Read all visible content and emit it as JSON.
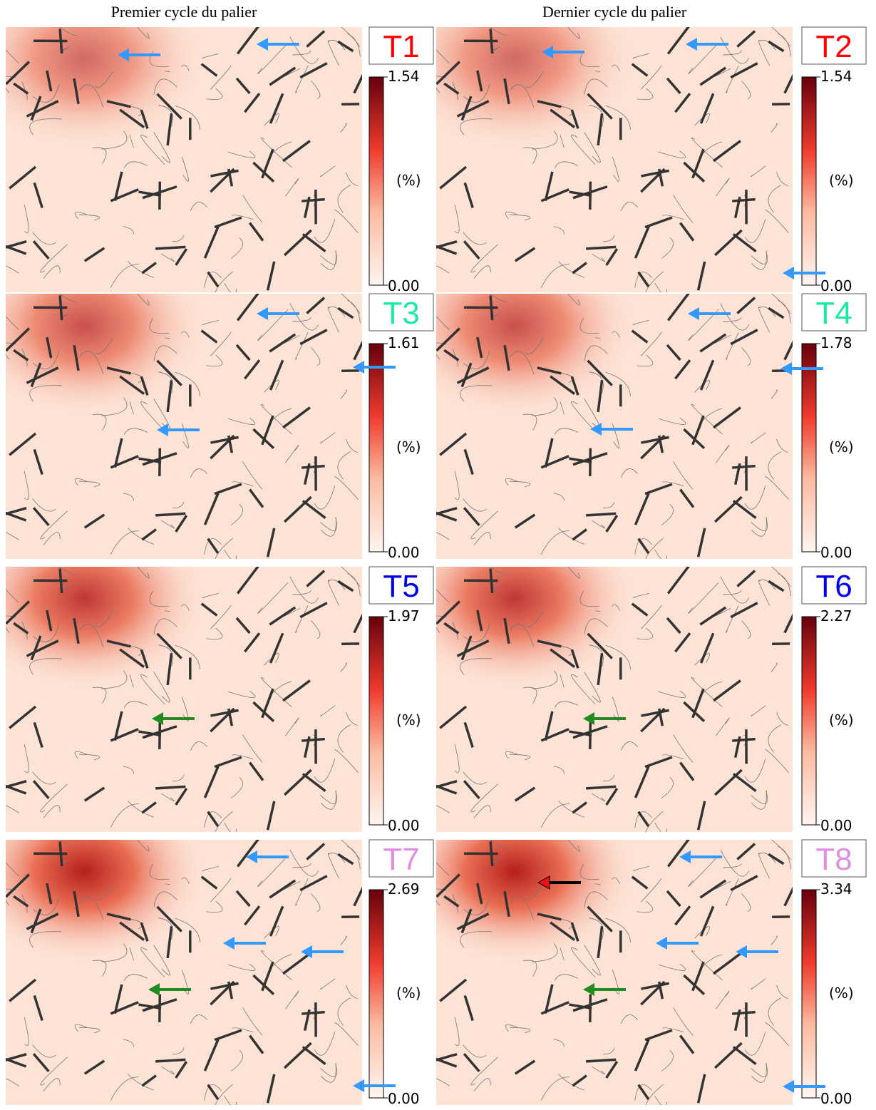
{
  "header": {
    "left": "Premier cycle du palier",
    "right": "Dernier cycle du palier"
  },
  "panels": [
    {
      "label": "T1",
      "label_color": "#ff0000",
      "colorbar": {
        "max": "1.54",
        "unit": "(%)",
        "min": "0.00"
      }
    },
    {
      "label": "T2",
      "label_color": "#ff0000",
      "colorbar": {
        "max": "1.54",
        "unit": "(%)",
        "min": "0.00"
      }
    },
    {
      "label": "T3",
      "label_color": "#1de9a0",
      "colorbar": {
        "max": "1.61",
        "unit": "(%)",
        "min": "0.00"
      }
    },
    {
      "label": "T4",
      "label_color": "#1de9a0",
      "colorbar": {
        "max": "1.78",
        "unit": "(%)",
        "min": "0.00"
      }
    },
    {
      "label": "T5",
      "label_color": "#0000ee",
      "colorbar": {
        "max": "1.97",
        "unit": "(%)",
        "min": "0.00"
      }
    },
    {
      "label": "T6",
      "label_color": "#0000ee",
      "colorbar": {
        "max": "2.27",
        "unit": "(%)",
        "min": "0.00"
      }
    },
    {
      "label": "T7",
      "label_color": "#e08ee0",
      "colorbar": {
        "max": "2.69",
        "unit": "(%)",
        "min": "0.00"
      }
    },
    {
      "label": "T8",
      "label_color": "#e08ee0",
      "colorbar": {
        "max": "3.34",
        "unit": "(%)",
        "min": "0.00"
      }
    }
  ]
}
